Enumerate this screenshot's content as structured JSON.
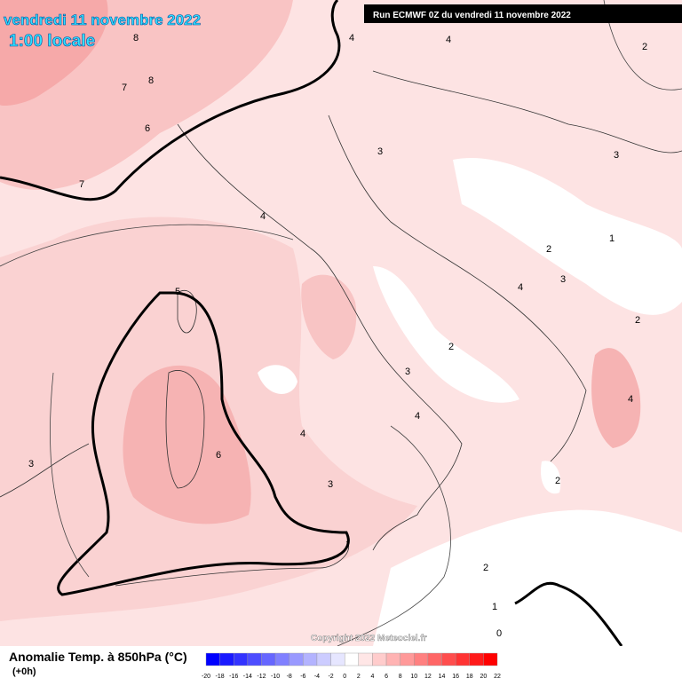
{
  "header": {
    "title": "vendredi 11 novembre 2022",
    "time": "1:00 locale",
    "run": "Run ECMWF 0Z du vendredi 11 novembre 2022"
  },
  "copyright": "Copyright 2022 Meteociel.fr",
  "legend": {
    "title": "Anomalie Temp. à 850hPa (°C)",
    "subtitle": "(+0h)",
    "ticks": [
      -20,
      -18,
      -16,
      -14,
      -12,
      -10,
      -8,
      -6,
      -4,
      -2,
      0,
      2,
      4,
      6,
      8,
      10,
      12,
      14,
      16,
      18,
      20,
      22
    ],
    "colors": [
      "#0000ff",
      "#1a1aff",
      "#3333ff",
      "#4d4dff",
      "#6666ff",
      "#8080ff",
      "#9999ff",
      "#b3b3ff",
      "#ccccff",
      "#e6e6ff",
      "#ffffff",
      "#ffe6e6",
      "#ffcccc",
      "#ffb3b3",
      "#ff9999",
      "#ff8080",
      "#ff6666",
      "#ff4d4d",
      "#ff3333",
      "#ff1a1a",
      "#ff0000"
    ]
  },
  "contour_labels": [
    8,
    7,
    8,
    6,
    7,
    4,
    4,
    2,
    3,
    3,
    4,
    2,
    1,
    3,
    4,
    2,
    5,
    2,
    3,
    4,
    4,
    4,
    6,
    3,
    3,
    2,
    2,
    1,
    0
  ]
}
